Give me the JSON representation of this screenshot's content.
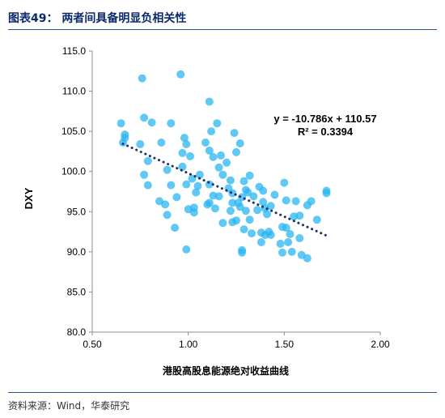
{
  "figure": {
    "title": "图表49：  两者间具备明显负相关性",
    "source": "资料来源：Wind，华泰研究"
  },
  "colors": {
    "point": "#29b6f0",
    "trendline": "#1f2f6a",
    "axis": "#8c8c8c",
    "rule": "#2f5597"
  },
  "chart_data": {
    "type": "scatter",
    "title": "",
    "xlabel": "港股高股息能源绝对收益曲线",
    "ylabel": "DXY",
    "xlim": [
      0.5,
      2.0
    ],
    "ylim": [
      80.0,
      115.0
    ],
    "x_ticks": [
      "0.50",
      "1.00",
      "1.50",
      "2.00"
    ],
    "y_ticks": [
      "80.0",
      "85.0",
      "90.0",
      "95.0",
      "100.0",
      "105.0",
      "110.0",
      "115.0"
    ],
    "grid": false,
    "legend": "none",
    "trendline": {
      "slope": -10.786,
      "intercept": 110.57,
      "x_range": [
        0.66,
        1.72
      ],
      "style": "dotted"
    },
    "annotations": [
      "y = -10.786x + 110.57",
      "R² = 0.3394"
    ],
    "points": [
      [
        0.65,
        106.0
      ],
      [
        0.66,
        103.6
      ],
      [
        0.67,
        104.6
      ],
      [
        0.67,
        104.2
      ],
      [
        0.75,
        103.4
      ],
      [
        0.76,
        111.6
      ],
      [
        0.77,
        106.7
      ],
      [
        0.77,
        99.6
      ],
      [
        0.79,
        101.3
      ],
      [
        0.79,
        98.3
      ],
      [
        0.81,
        106.1
      ],
      [
        0.85,
        96.3
      ],
      [
        0.86,
        103.6
      ],
      [
        0.88,
        95.9
      ],
      [
        0.89,
        100.2
      ],
      [
        0.89,
        94.6
      ],
      [
        0.91,
        106.0
      ],
      [
        0.91,
        98.3
      ],
      [
        0.93,
        93.0
      ],
      [
        0.94,
        96.8
      ],
      [
        0.96,
        112.1
      ],
      [
        0.97,
        102.3
      ],
      [
        0.97,
        100.6
      ],
      [
        0.98,
        104.2
      ],
      [
        0.99,
        103.4
      ],
      [
        0.99,
        98.4
      ],
      [
        0.99,
        90.3
      ],
      [
        1.0,
        95.3
      ],
      [
        1.01,
        101.9
      ],
      [
        1.02,
        99.1
      ],
      [
        1.03,
        95.5
      ],
      [
        1.03,
        94.9
      ],
      [
        1.04,
        97.4
      ],
      [
        1.05,
        98.2
      ],
      [
        1.06,
        99.6
      ],
      [
        1.09,
        103.6
      ],
      [
        1.1,
        95.9
      ],
      [
        1.11,
        108.7
      ],
      [
        1.11,
        102.6
      ],
      [
        1.11,
        98.4
      ],
      [
        1.11,
        96.1
      ],
      [
        1.12,
        105.0
      ],
      [
        1.13,
        101.8
      ],
      [
        1.13,
        97.0
      ],
      [
        1.14,
        95.4
      ],
      [
        1.15,
        106.0
      ],
      [
        1.16,
        100.5
      ],
      [
        1.16,
        96.9
      ],
      [
        1.17,
        102.0
      ],
      [
        1.18,
        99.6
      ],
      [
        1.18,
        93.6
      ],
      [
        1.2,
        101.1
      ],
      [
        1.21,
        97.9
      ],
      [
        1.22,
        98.9
      ],
      [
        1.22,
        95.1
      ],
      [
        1.23,
        97.3
      ],
      [
        1.23,
        96.1
      ],
      [
        1.23,
        93.7
      ],
      [
        1.24,
        104.8
      ],
      [
        1.25,
        102.4
      ],
      [
        1.25,
        93.9
      ],
      [
        1.26,
        96.1
      ],
      [
        1.27,
        103.5
      ],
      [
        1.27,
        95.6
      ],
      [
        1.28,
        96.8
      ],
      [
        1.28,
        90.2
      ],
      [
        1.28,
        89.9
      ],
      [
        1.29,
        98.8
      ],
      [
        1.29,
        92.8
      ],
      [
        1.3,
        97.7
      ],
      [
        1.3,
        95.1
      ],
      [
        1.31,
        97.4
      ],
      [
        1.32,
        99.5
      ],
      [
        1.32,
        94.0
      ],
      [
        1.33,
        92.3
      ],
      [
        1.34,
        96.9
      ],
      [
        1.36,
        95.2
      ],
      [
        1.37,
        98.1
      ],
      [
        1.38,
        92.4
      ],
      [
        1.38,
        91.2
      ],
      [
        1.39,
        97.6
      ],
      [
        1.39,
        96.2
      ],
      [
        1.4,
        95.4
      ],
      [
        1.4,
        92.1
      ],
      [
        1.41,
        94.7
      ],
      [
        1.42,
        92.5
      ],
      [
        1.43,
        95.7
      ],
      [
        1.43,
        92.1
      ],
      [
        1.45,
        97.1
      ],
      [
        1.48,
        91.0
      ],
      [
        1.49,
        89.9
      ],
      [
        1.49,
        93.1
      ],
      [
        1.5,
        98.6
      ],
      [
        1.51,
        96.4
      ],
      [
        1.51,
        93.0
      ],
      [
        1.52,
        91.2
      ],
      [
        1.53,
        92.2
      ],
      [
        1.54,
        90.0
      ],
      [
        1.55,
        94.4
      ],
      [
        1.56,
        96.3
      ],
      [
        1.58,
        91.7
      ],
      [
        1.58,
        94.5
      ],
      [
        1.59,
        89.6
      ],
      [
        1.62,
        95.8
      ],
      [
        1.62,
        89.2
      ],
      [
        1.64,
        96.3
      ],
      [
        1.67,
        94.0
      ],
      [
        1.72,
        97.6
      ],
      [
        1.72,
        97.3
      ]
    ]
  }
}
